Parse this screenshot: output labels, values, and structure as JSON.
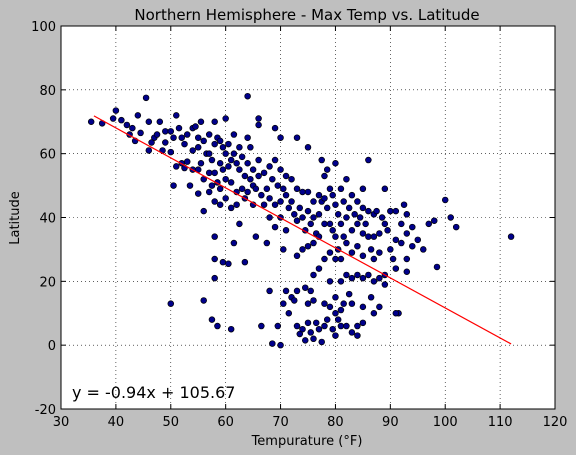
{
  "chart_data": {
    "type": "scatter",
    "title": "Northern Hemisphere - Max Temp vs. Latitude",
    "xlabel": "Tempurature (°F)",
    "ylabel": "Latitude",
    "xlim": [
      30,
      120
    ],
    "ylim": [
      -20,
      100
    ],
    "xticks": [
      30,
      40,
      50,
      60,
      70,
      80,
      90,
      100,
      110,
      120
    ],
    "yticks": [
      -20,
      0,
      20,
      40,
      60,
      80,
      100
    ],
    "grid": true,
    "grid_style": "dotted",
    "colors": {
      "points": "#00008b",
      "point_edge": "#000000",
      "regression": "#ff0000",
      "background": "#bfbfbf",
      "plot_area": "#ffffff"
    },
    "regression": {
      "slope": -0.94,
      "intercept": 105.67,
      "x_range": [
        36,
        112
      ]
    },
    "annotation": {
      "text": "y = -0.94x + 105.67",
      "x": 32,
      "y": -15,
      "color": "#ff0000"
    },
    "points": [
      [
        35.5,
        70
      ],
      [
        37.5,
        69.5
      ],
      [
        39.5,
        71
      ],
      [
        40,
        73.5
      ],
      [
        41,
        70.5
      ],
      [
        42,
        69
      ],
      [
        42.5,
        66
      ],
      [
        43,
        68
      ],
      [
        43.5,
        64
      ],
      [
        44,
        72
      ],
      [
        44.5,
        66.5
      ],
      [
        45.5,
        77.5
      ],
      [
        46,
        70
      ],
      [
        46,
        61
      ],
      [
        46.5,
        63.5
      ],
      [
        47,
        65
      ],
      [
        47.5,
        66
      ],
      [
        48,
        70
      ],
      [
        48.5,
        61
      ],
      [
        49,
        67
      ],
      [
        49,
        63.5
      ],
      [
        50,
        67
      ],
      [
        50,
        60.5
      ],
      [
        50.5,
        65
      ],
      [
        50.5,
        50
      ],
      [
        51,
        72
      ],
      [
        51,
        56
      ],
      [
        51.5,
        68
      ],
      [
        52,
        65
      ],
      [
        52,
        57
      ],
      [
        52.5,
        63
      ],
      [
        52.5,
        55.5
      ],
      [
        53,
        66
      ],
      [
        53,
        57.5
      ],
      [
        53.5,
        50
      ],
      [
        54,
        68
      ],
      [
        54,
        61
      ],
      [
        54,
        55
      ],
      [
        54.5,
        68.5
      ],
      [
        55,
        65
      ],
      [
        55,
        62
      ],
      [
        55,
        55
      ],
      [
        55,
        47.5
      ],
      [
        55.5,
        70
      ],
      [
        55.5,
        57
      ],
      [
        56,
        64
      ],
      [
        56,
        52
      ],
      [
        56,
        42
      ],
      [
        56.5,
        60
      ],
      [
        57,
        66
      ],
      [
        57,
        60
      ],
      [
        57,
        54
      ],
      [
        57,
        48
      ],
      [
        57.5,
        58
      ],
      [
        57.5,
        50
      ],
      [
        58,
        70
      ],
      [
        58,
        63
      ],
      [
        58,
        54
      ],
      [
        58,
        45
      ],
      [
        58.5,
        65
      ],
      [
        58.5,
        51
      ],
      [
        59,
        64
      ],
      [
        59,
        57
      ],
      [
        59,
        49
      ],
      [
        59,
        44
      ],
      [
        59.5,
        62
      ],
      [
        59.5,
        55
      ],
      [
        60,
        71
      ],
      [
        60,
        60
      ],
      [
        60,
        52
      ],
      [
        60,
        46
      ],
      [
        60.5,
        63
      ],
      [
        60.5,
        56
      ],
      [
        61,
        58
      ],
      [
        61,
        51
      ],
      [
        61,
        43
      ],
      [
        61.5,
        66
      ],
      [
        61.5,
        60
      ],
      [
        62,
        57
      ],
      [
        62,
        48
      ],
      [
        62,
        44
      ],
      [
        62.5,
        62
      ],
      [
        62.5,
        55
      ],
      [
        63,
        59
      ],
      [
        63,
        49
      ],
      [
        63.5,
        53
      ],
      [
        63.5,
        46
      ],
      [
        64,
        78
      ],
      [
        64,
        65
      ],
      [
        64,
        57
      ],
      [
        64,
        48
      ],
      [
        64.5,
        62
      ],
      [
        64.5,
        52
      ],
      [
        65,
        55
      ],
      [
        65,
        50
      ],
      [
        65,
        44
      ],
      [
        65.5,
        49
      ],
      [
        66,
        71
      ],
      [
        66,
        69
      ],
      [
        66,
        58
      ],
      [
        66,
        53
      ],
      [
        66.5,
        47
      ],
      [
        67,
        54
      ],
      [
        67,
        44
      ],
      [
        67.5,
        49
      ],
      [
        68,
        56
      ],
      [
        68,
        46
      ],
      [
        68,
        40
      ],
      [
        68.5,
        52
      ],
      [
        69,
        68
      ],
      [
        69,
        58
      ],
      [
        69,
        44
      ],
      [
        69,
        37
      ],
      [
        69.5,
        50
      ],
      [
        70,
        65
      ],
      [
        70,
        55
      ],
      [
        70,
        45
      ],
      [
        70,
        40
      ],
      [
        70.5,
        49
      ],
      [
        71,
        53
      ],
      [
        71,
        47
      ],
      [
        71,
        36
      ],
      [
        71.5,
        43
      ],
      [
        72,
        52
      ],
      [
        72,
        45
      ],
      [
        72.5,
        41
      ],
      [
        73,
        65
      ],
      [
        73,
        49
      ],
      [
        73,
        39
      ],
      [
        73.5,
        43
      ],
      [
        74,
        48
      ],
      [
        74,
        40
      ],
      [
        74,
        30
      ],
      [
        74.5,
        36
      ],
      [
        75,
        62
      ],
      [
        75,
        48
      ],
      [
        75,
        42
      ],
      [
        75,
        31
      ],
      [
        75.5,
        38
      ],
      [
        76,
        45
      ],
      [
        76,
        40
      ],
      [
        76,
        32
      ],
      [
        76,
        22
      ],
      [
        76.5,
        35
      ],
      [
        77,
        47
      ],
      [
        77,
        41
      ],
      [
        77,
        34
      ],
      [
        77,
        24
      ],
      [
        77.5,
        58
      ],
      [
        77.5,
        45
      ],
      [
        78,
        53
      ],
      [
        78,
        46
      ],
      [
        78,
        38
      ],
      [
        78,
        27
      ],
      [
        78.5,
        55
      ],
      [
        78.5,
        43
      ],
      [
        79,
        49
      ],
      [
        79,
        38
      ],
      [
        79,
        29
      ],
      [
        79,
        20
      ],
      [
        79.5,
        47
      ],
      [
        79.5,
        36
      ],
      [
        80,
        57
      ],
      [
        80,
        44
      ],
      [
        80,
        34
      ],
      [
        80,
        27
      ],
      [
        80,
        15
      ],
      [
        80.5,
        41
      ],
      [
        80.5,
        30
      ],
      [
        81,
        49
      ],
      [
        81,
        38
      ],
      [
        81,
        27
      ],
      [
        81,
        20
      ],
      [
        81.5,
        45
      ],
      [
        81.5,
        34
      ],
      [
        82,
        52
      ],
      [
        82,
        40
      ],
      [
        82,
        32
      ],
      [
        82,
        22
      ],
      [
        82.5,
        43
      ],
      [
        83,
        47
      ],
      [
        83,
        36
      ],
      [
        83,
        29
      ],
      [
        83,
        21
      ],
      [
        83.5,
        41
      ],
      [
        84,
        45
      ],
      [
        84,
        38
      ],
      [
        84,
        31
      ],
      [
        84,
        22
      ],
      [
        84.5,
        40
      ],
      [
        85,
        49
      ],
      [
        85,
        43
      ],
      [
        85,
        35
      ],
      [
        85,
        28
      ],
      [
        85,
        21
      ],
      [
        85.5,
        38
      ],
      [
        86,
        58
      ],
      [
        86,
        42
      ],
      [
        86,
        34
      ],
      [
        86,
        22
      ],
      [
        86.5,
        30
      ],
      [
        87,
        41
      ],
      [
        87,
        34
      ],
      [
        87,
        27
      ],
      [
        87,
        20
      ],
      [
        87.5,
        42
      ],
      [
        88,
        35
      ],
      [
        88,
        29
      ],
      [
        88,
        21
      ],
      [
        88.5,
        40
      ],
      [
        89,
        49
      ],
      [
        89,
        38
      ],
      [
        89,
        22
      ],
      [
        89,
        19
      ],
      [
        89.5,
        36
      ],
      [
        90,
        42
      ],
      [
        90,
        30
      ],
      [
        90.5,
        27
      ],
      [
        91,
        42
      ],
      [
        91,
        33
      ],
      [
        91,
        24
      ],
      [
        91.5,
        10
      ],
      [
        92,
        38
      ],
      [
        92,
        32
      ],
      [
        92.5,
        44
      ],
      [
        93,
        41
      ],
      [
        93,
        35
      ],
      [
        93,
        27
      ],
      [
        93,
        23
      ],
      [
        94,
        37
      ],
      [
        94,
        31
      ],
      [
        95,
        33
      ],
      [
        96,
        30
      ],
      [
        97,
        38
      ],
      [
        98,
        39
      ],
      [
        98.5,
        24.5
      ],
      [
        100,
        45.5
      ],
      [
        101,
        40
      ],
      [
        102,
        37
      ],
      [
        112,
        34
      ],
      [
        50,
        13
      ],
      [
        56,
        14
      ],
      [
        58,
        34
      ],
      [
        58,
        27
      ],
      [
        58,
        21
      ],
      [
        57.5,
        8
      ],
      [
        58.5,
        6
      ],
      [
        59.5,
        26
      ],
      [
        60.5,
        25.5
      ],
      [
        61,
        5
      ],
      [
        61.5,
        32
      ],
      [
        62.5,
        38
      ],
      [
        63.5,
        26
      ],
      [
        65.5,
        34
      ],
      [
        66.5,
        6
      ],
      [
        67.5,
        32
      ],
      [
        68,
        17
      ],
      [
        68.5,
        0.5
      ],
      [
        69.5,
        6
      ],
      [
        70,
        0
      ],
      [
        70.5,
        13
      ],
      [
        70.5,
        30
      ],
      [
        71,
        17
      ],
      [
        71.5,
        10
      ],
      [
        72,
        15
      ],
      [
        72.5,
        14
      ],
      [
        73,
        28
      ],
      [
        73,
        6
      ],
      [
        73,
        17
      ],
      [
        73.5,
        3.5
      ],
      [
        74,
        5
      ],
      [
        74.5,
        1.5
      ],
      [
        74.5,
        18
      ],
      [
        75,
        13
      ],
      [
        75,
        7
      ],
      [
        75.5,
        17
      ],
      [
        75.5,
        4
      ],
      [
        76,
        2
      ],
      [
        76,
        14
      ],
      [
        76.5,
        7
      ],
      [
        77,
        5
      ],
      [
        77.5,
        1
      ],
      [
        78,
        13
      ],
      [
        78,
        6
      ],
      [
        78.5,
        8
      ],
      [
        79,
        12
      ],
      [
        79.5,
        5
      ],
      [
        80,
        10
      ],
      [
        80,
        3
      ],
      [
        80.5,
        8
      ],
      [
        81,
        11
      ],
      [
        81,
        6
      ],
      [
        81.5,
        13
      ],
      [
        82,
        6
      ],
      [
        82.5,
        16
      ],
      [
        83,
        13
      ],
      [
        83,
        4
      ],
      [
        84,
        6
      ],
      [
        84,
        3
      ],
      [
        85,
        12
      ],
      [
        85,
        7
      ],
      [
        86.5,
        15
      ],
      [
        87,
        10
      ],
      [
        88,
        12
      ],
      [
        91,
        10
      ]
    ]
  }
}
